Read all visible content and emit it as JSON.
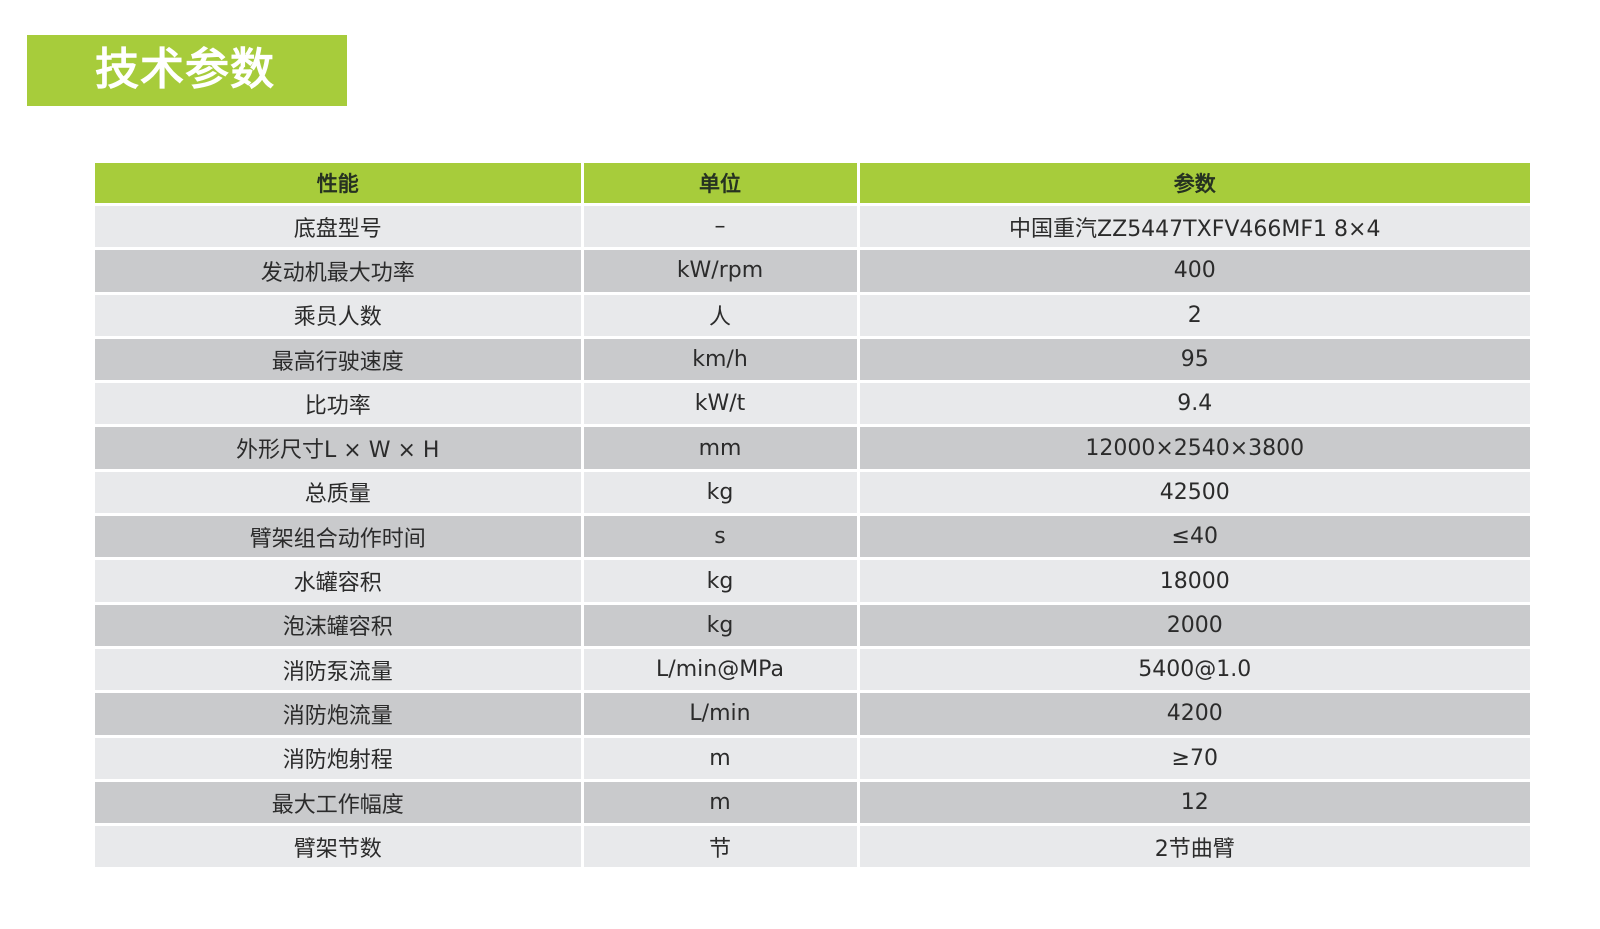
{
  "title": "技术参数",
  "table": {
    "headers": [
      "性能",
      "单位",
      "参数"
    ],
    "rows": [
      [
        "底盘型号",
        "–",
        "中国重汽ZZ5447TXFV466MF1 8×4"
      ],
      [
        "发动机最大功率",
        "kW/rpm",
        "400"
      ],
      [
        "乘员人数",
        "人",
        "2"
      ],
      [
        "最高行驶速度",
        "km/h",
        "95"
      ],
      [
        "比功率",
        "kW/t",
        "9.4"
      ],
      [
        "外形尺寸L × W × H",
        "mm",
        "12000×2540×3800"
      ],
      [
        "总质量",
        "kg",
        "42500"
      ],
      [
        "臂架组合动作时间",
        "s",
        "≤40"
      ],
      [
        "水罐容积",
        "kg",
        "18000"
      ],
      [
        "泡沫罐容积",
        "kg",
        "2000"
      ],
      [
        "消防泵流量",
        "L/min@MPa",
        "5400@1.0"
      ],
      [
        "消防炮流量",
        "L/min",
        "4200"
      ],
      [
        "消防炮射程",
        "m",
        "≥70"
      ],
      [
        "最大工作幅度",
        "m",
        "12"
      ],
      [
        "臂架节数",
        "节",
        "2节曲臂"
      ]
    ]
  },
  "colors": {
    "accent": "#a7cc3b",
    "row_light": "#e8e9eb",
    "row_dark": "#c9cacc"
  }
}
